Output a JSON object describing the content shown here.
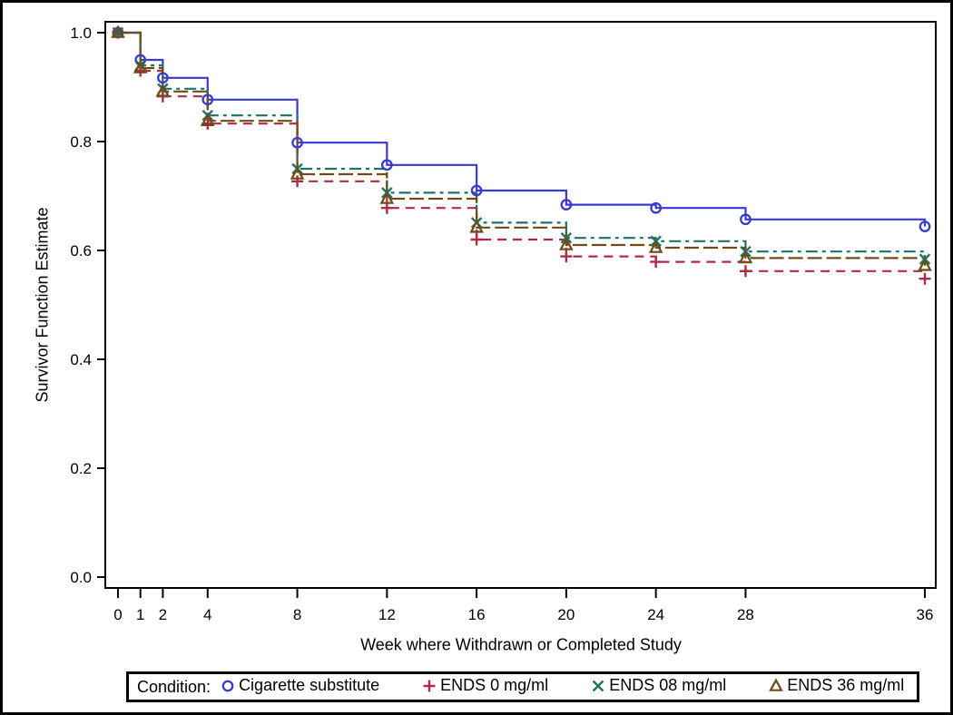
{
  "figure": {
    "background": "#ffffff",
    "border_color": "#000000"
  },
  "y_axis": {
    "title": "Survivor Function Estimate",
    "tick_labels": [
      "0.0",
      "0.2",
      "0.4",
      "0.6",
      "0.8",
      "1.0"
    ],
    "tick_values": [
      0.0,
      0.2,
      0.4,
      0.6,
      0.8,
      1.0
    ],
    "range": [
      0.0,
      1.0
    ]
  },
  "x_axis": {
    "title": "Week where Withdrawn or Completed Study",
    "tick_labels": [
      "0",
      "1",
      "2",
      "4",
      "8",
      "12",
      "16",
      "20",
      "24",
      "28",
      "36"
    ],
    "tick_values": [
      0,
      1,
      2,
      4,
      8,
      12,
      16,
      20,
      24,
      28,
      36
    ],
    "range": [
      0,
      36
    ]
  },
  "legend": {
    "title": "Condition:",
    "items": [
      {
        "label": "Cigarette substitute",
        "marker": "circle",
        "color": "#3a3ad1"
      },
      {
        "label": "ENDS 0 mg/ml",
        "marker": "plus",
        "color": "#b02a48"
      },
      {
        "label": "ENDS 08 mg/ml",
        "marker": "x",
        "color": "#1e7266"
      },
      {
        "label": "ENDS 36 mg/ml",
        "marker": "triangle",
        "color": "#6f4c16"
      }
    ]
  },
  "chart_data": {
    "type": "line",
    "subtype": "kaplan-meier-step",
    "title": "",
    "xlabel": "Week where Withdrawn or Completed Study",
    "ylabel": "Survivor Function Estimate",
    "x": [
      0,
      1,
      2,
      4,
      8,
      12,
      16,
      20,
      24,
      28,
      36
    ],
    "xlim": [
      0,
      36
    ],
    "ylim": [
      0.0,
      1.0
    ],
    "grid": false,
    "legend_position": "bottom",
    "series": [
      {
        "name": "Cigarette substitute",
        "marker": "circle",
        "color": "#3a3ad1",
        "dash": "solid",
        "values": [
          1.0,
          0.95,
          0.917,
          0.877,
          0.798,
          0.757,
          0.71,
          0.684,
          0.678,
          0.657,
          0.644
        ]
      },
      {
        "name": "ENDS 0 mg/ml",
        "marker": "plus",
        "color": "#b02a48",
        "dash": "dashed",
        "values": [
          1.0,
          0.93,
          0.883,
          0.833,
          0.727,
          0.678,
          0.62,
          0.589,
          0.579,
          0.562,
          0.548
        ]
      },
      {
        "name": "ENDS 08 mg/ml",
        "marker": "x",
        "color": "#1e7266",
        "dash": "dashdot",
        "values": [
          1.0,
          0.94,
          0.897,
          0.848,
          0.75,
          0.706,
          0.651,
          0.623,
          0.617,
          0.598,
          0.584
        ]
      },
      {
        "name": "ENDS 36 mg/ml",
        "marker": "triangle",
        "color": "#6f4c16",
        "dash": "longdash",
        "values": [
          1.0,
          0.935,
          0.892,
          0.838,
          0.74,
          0.695,
          0.642,
          0.61,
          0.605,
          0.586,
          0.572
        ]
      }
    ]
  }
}
